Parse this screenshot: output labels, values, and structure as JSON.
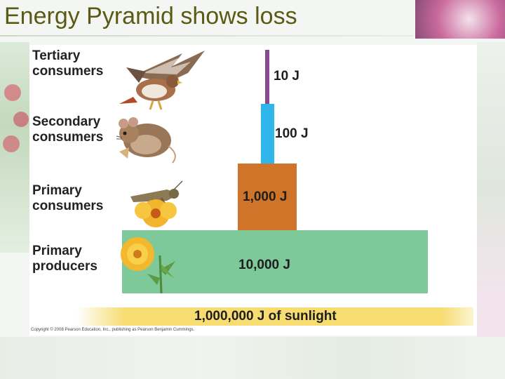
{
  "title": "Energy Pyramid shows loss",
  "levels": [
    {
      "label": "Tertiary\nconsumers",
      "energy": "10 J"
    },
    {
      "label": "Secondary\nconsumers",
      "energy": "100 J"
    },
    {
      "label": "Primary\nconsumers",
      "energy": "1,000 J"
    },
    {
      "label": "Primary\nproducers",
      "energy": "10,000 J"
    }
  ],
  "sunlight": "1,000,000 J of sunlight",
  "copyright": "Copyright © 2008 Pearson Education, Inc., publishing as Pearson Benjamin Cummings.",
  "colors": {
    "tertiary": "#8a4a8e",
    "secondary": "#2fb6ea",
    "primary_consumers": "#cf7428",
    "producers": "#7ec99a",
    "sunlight": "#f7dc72",
    "title": "#5a5a14"
  }
}
